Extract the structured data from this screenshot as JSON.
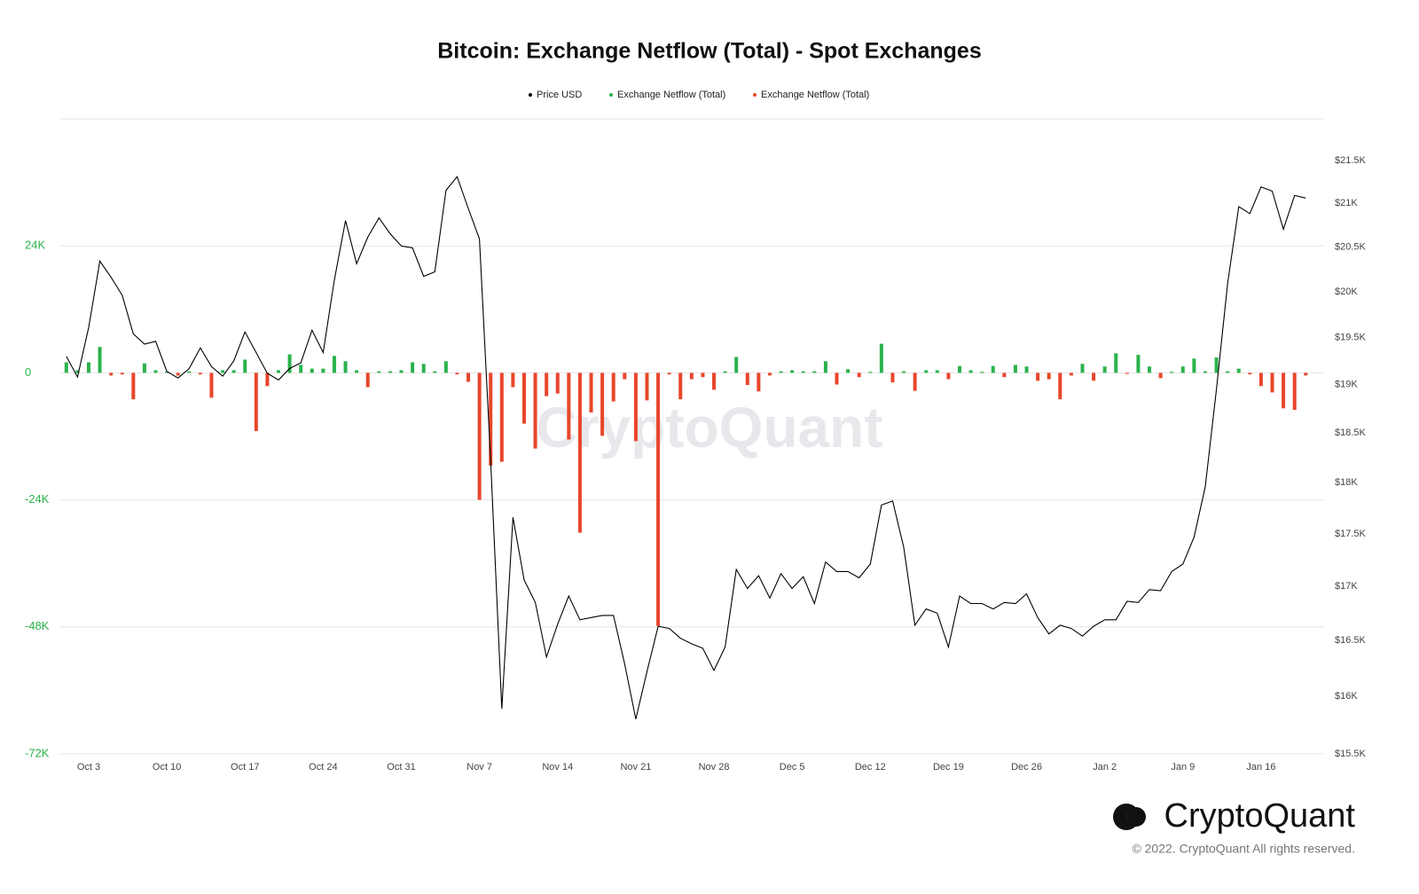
{
  "chart_data": {
    "type": "bar",
    "title": "Bitcoin: Exchange Netflow (Total) - Spot Exchanges",
    "watermark": "CryptoQuant",
    "brand": "CryptoQuant",
    "copyright": "© 2022. CryptoQuant All rights reserved.",
    "categories": [
      null,
      null,
      "Oct 3",
      null,
      null,
      null,
      null,
      null,
      null,
      "Oct 10",
      null,
      null,
      null,
      null,
      null,
      null,
      "Oct 17",
      null,
      null,
      null,
      null,
      null,
      null,
      "Oct 24",
      null,
      null,
      null,
      null,
      null,
      null,
      "Oct 31",
      null,
      null,
      null,
      null,
      null,
      null,
      "Nov 7",
      null,
      null,
      null,
      null,
      null,
      null,
      "Nov 14",
      null,
      null,
      null,
      null,
      null,
      null,
      "Nov 21",
      null,
      null,
      null,
      null,
      null,
      null,
      "Nov 28",
      null,
      null,
      null,
      null,
      null,
      null,
      "Dec 5",
      null,
      null,
      null,
      null,
      null,
      null,
      "Dec 12",
      null,
      null,
      null,
      null,
      null,
      null,
      "Dec 19",
      null,
      null,
      null,
      null,
      null,
      null,
      "Dec 26",
      null,
      null,
      null,
      null,
      null,
      null,
      "Jan 2",
      null,
      null,
      null,
      null,
      null,
      null,
      "Jan 9",
      null,
      null,
      null,
      null,
      null,
      null,
      "Jan 16",
      null,
      null,
      null,
      null
    ],
    "series": [
      {
        "name": "Price USD",
        "color": "#000000",
        "type": "line",
        "axis": "y2",
        "values": [
          19300,
          19080,
          19610,
          20340,
          20160,
          19960,
          19540,
          19430,
          19460,
          19140,
          19070,
          19170,
          19390,
          19190,
          19090,
          19250,
          19560,
          19340,
          19120,
          19050,
          19170,
          19230,
          19580,
          19340,
          20130,
          20800,
          20310,
          20610,
          20830,
          20650,
          20510,
          20490,
          20170,
          20220,
          21150,
          21310,
          20940,
          20590,
          18230,
          15890,
          17660,
          17060,
          16850,
          16350,
          16650,
          16910,
          16690,
          16710,
          16730,
          16730,
          16290,
          15800,
          16220,
          16630,
          16610,
          16520,
          16470,
          16430,
          16230,
          16440,
          17160,
          16980,
          17100,
          16890,
          17120,
          16980,
          17090,
          16840,
          17230,
          17140,
          17140,
          17080,
          17210,
          17780,
          17820,
          17370,
          16640,
          16790,
          16750,
          16440,
          16910,
          16840,
          16840,
          16790,
          16850,
          16840,
          16930,
          16710,
          16560,
          16640,
          16610,
          16540,
          16630,
          16690,
          16690,
          16860,
          16850,
          16970,
          16960,
          17140,
          17210,
          17470,
          17960,
          18950,
          20090,
          20960,
          20880,
          21190,
          21140,
          20700,
          21090,
          21060
        ]
      },
      {
        "name": "Exchange Netflow (Total)",
        "color": "#2bb24c",
        "type": "bar",
        "values": [
          2000,
          500,
          2000,
          4900,
          null,
          null,
          null,
          1800,
          500,
          200,
          null,
          300,
          null,
          null,
          500,
          500,
          2500,
          null,
          null,
          500,
          3500,
          1500,
          800,
          800,
          3200,
          2200,
          500,
          null,
          300,
          300,
          500,
          2000,
          1700,
          300,
          2200,
          null,
          null,
          null,
          null,
          null,
          null,
          null,
          null,
          null,
          null,
          null,
          null,
          null,
          null,
          null,
          null,
          null,
          null,
          null,
          null,
          null,
          null,
          null,
          null,
          300,
          3000,
          null,
          null,
          null,
          300,
          500,
          300,
          300,
          2200,
          null,
          700,
          null,
          200,
          5500,
          null,
          300,
          null,
          500,
          500,
          null,
          1300,
          500,
          200,
          1300,
          null,
          1500,
          1200,
          null,
          null,
          null,
          null,
          1700,
          null,
          1200,
          3700,
          null,
          3400,
          1200,
          null,
          200,
          1200,
          2700,
          300,
          2900,
          300,
          800,
          null,
          null,
          null,
          null,
          null,
          null
        ]
      },
      {
        "name": "Exchange Netflow (Total)",
        "color": "#e8462a",
        "type": "bar",
        "values": [
          null,
          null,
          null,
          null,
          -500,
          -300,
          -5000,
          null,
          null,
          null,
          -500,
          null,
          -300,
          -4700,
          null,
          null,
          null,
          -11000,
          -2500,
          null,
          null,
          null,
          null,
          null,
          null,
          null,
          null,
          -2700,
          null,
          null,
          null,
          null,
          null,
          null,
          null,
          -300,
          -1700,
          -24000,
          -17500,
          -16800,
          -2700,
          -9600,
          -14300,
          -4400,
          -3900,
          -12600,
          -30200,
          -7500,
          -11900,
          -5400,
          -1200,
          -12900,
          -5200,
          -47800,
          -300,
          -5000,
          -1200,
          -800,
          -3200,
          null,
          null,
          -2300,
          -3500,
          -500,
          null,
          null,
          null,
          null,
          null,
          -2200,
          null,
          -800,
          null,
          null,
          -1800,
          null,
          -3400,
          null,
          null,
          -1200,
          null,
          null,
          null,
          null,
          -800,
          null,
          null,
          -1500,
          -1200,
          -5000,
          -500,
          null,
          -1500,
          null,
          null,
          -200,
          null,
          null,
          -1000,
          null,
          null,
          null,
          null,
          null,
          null,
          null,
          -300,
          -2500,
          -3700,
          -6700,
          -7000,
          -500
        ]
      }
    ],
    "ylim": [
      -72000,
      48000
    ],
    "yticks": [
      {
        "value": 24000,
        "label": "24K"
      },
      0,
      {
        "value": -24000,
        "label": "-24K"
      },
      {
        "value": -48000,
        "label": "-48K"
      },
      {
        "value": -72000,
        "label": "-72K"
      }
    ],
    "ytick_color": "#2bb24c",
    "y2lim": [
      15500,
      22000
    ],
    "y2log": true,
    "y2ticks": [
      {
        "value": 21500,
        "label": "$21.5K"
      },
      {
        "value": 21000,
        "label": "$21K"
      },
      {
        "value": 20500,
        "label": "$20.5K"
      },
      {
        "value": 20000,
        "label": "$20K"
      },
      {
        "value": 19500,
        "label": "$19.5K"
      },
      {
        "value": 19000,
        "label": "$19K"
      },
      {
        "value": 18500,
        "label": "$18.5K"
      },
      {
        "value": 18000,
        "label": "$18K"
      },
      {
        "value": 17500,
        "label": "$17.5K"
      },
      {
        "value": 17000,
        "label": "$17K"
      },
      {
        "value": 16500,
        "label": "$16.5K"
      },
      {
        "value": 16000,
        "label": "$16K"
      },
      {
        "value": 15500,
        "label": "$15.5K"
      }
    ],
    "grid": true
  }
}
